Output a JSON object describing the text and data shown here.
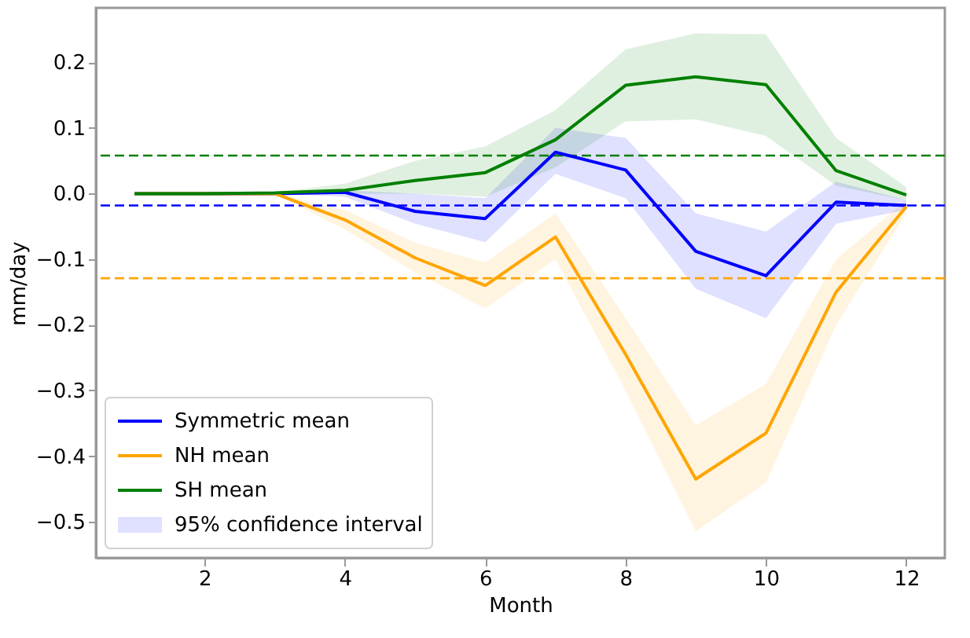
{
  "chart_data": {
    "type": "line",
    "xlabel": "Month",
    "ylabel": "mm/day",
    "x": [
      1,
      2,
      3,
      4,
      5,
      6,
      7,
      8,
      9,
      10,
      11,
      12
    ],
    "series": [
      {
        "name": "Symmetric mean",
        "color": "#0000ff",
        "values": [
          0,
          0,
          0,
          0.002,
          -0.027,
          -0.038,
          0.063,
          0.036,
          -0.088,
          -0.125,
          -0.013,
          -0.018
        ],
        "lower": [
          0,
          0,
          0,
          -0.005,
          -0.046,
          -0.074,
          0.03,
          -0.007,
          -0.145,
          -0.19,
          -0.046,
          -0.025
        ],
        "upper": [
          0,
          0,
          0,
          0.005,
          0,
          -0.007,
          0.1,
          0.085,
          -0.03,
          -0.058,
          0.018,
          -0.01
        ]
      },
      {
        "name": "NH mean",
        "color": "#ffa500",
        "values": [
          0,
          0,
          0,
          -0.04,
          -0.098,
          -0.14,
          -0.066,
          -0.245,
          -0.435,
          -0.365,
          -0.15,
          -0.02
        ],
        "lower": [
          0,
          0,
          0,
          -0.055,
          -0.12,
          -0.175,
          -0.1,
          -0.3,
          -0.515,
          -0.44,
          -0.2,
          -0.03
        ],
        "upper": [
          0,
          0,
          0,
          -0.025,
          -0.075,
          -0.105,
          -0.03,
          -0.19,
          -0.353,
          -0.29,
          -0.1,
          -0.01
        ]
      },
      {
        "name": "SH mean",
        "color": "#008000",
        "values": [
          0,
          0,
          0.001,
          0.005,
          0.02,
          0.032,
          0.082,
          0.165,
          0.178,
          0.166,
          0.035,
          -0.002
        ],
        "lower": [
          0,
          0,
          0,
          0,
          0,
          -0.005,
          0.04,
          0.11,
          0.113,
          0.088,
          0.012,
          -0.01
        ],
        "upper": [
          0,
          0,
          0.002,
          0.015,
          0.05,
          0.072,
          0.127,
          0.22,
          0.244,
          0.243,
          0.085,
          0.01
        ]
      }
    ],
    "ref_lines": [
      {
        "axis": "y",
        "value": -0.018,
        "color": "#0000ff",
        "line_style": "dashed"
      },
      {
        "axis": "y",
        "value": -0.129,
        "color": "#ffa500",
        "line_style": "dashed"
      },
      {
        "axis": "y",
        "value": 0.058,
        "color": "#008000",
        "line_style": "dashed"
      }
    ],
    "annotations": [
      "95% confidence interval"
    ],
    "xlim": [
      0.45,
      12.55
    ],
    "xticks": [
      2,
      4,
      6,
      8,
      10,
      12
    ],
    "ylim": [
      -0.555,
      0.283
    ],
    "yticks": [
      -0.5,
      -0.4,
      -0.3,
      -0.2,
      -0.1,
      {
        "value": 0,
        "label": "0.0"
      },
      0.1,
      0.2
    ],
    "grid": false,
    "legend": "bottom left",
    "marker": "none",
    "line_style": "solid"
  }
}
